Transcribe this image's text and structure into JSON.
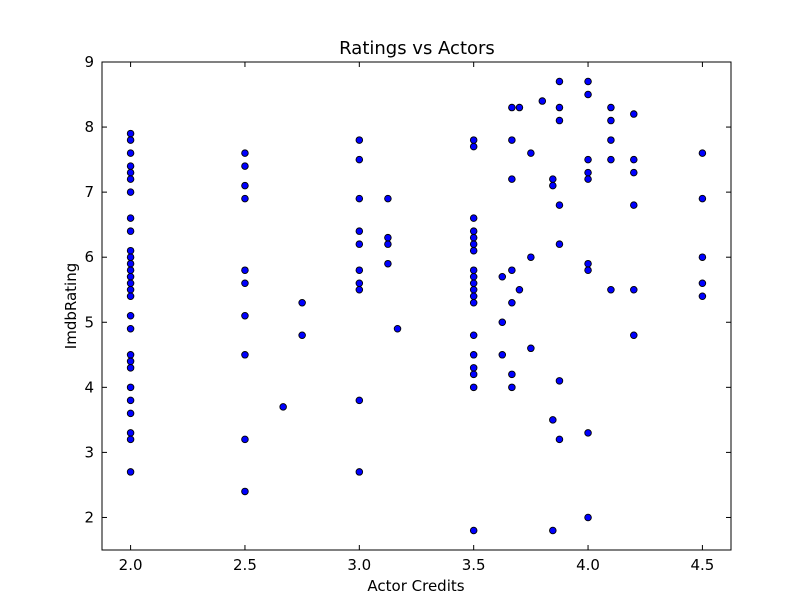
{
  "chart_data": {
    "type": "scatter",
    "title": "Ratings vs Actors",
    "xlabel": "Actor Credits",
    "ylabel": "ImdbRating",
    "xlim": [
      1.875,
      4.625
    ],
    "ylim": [
      1.5,
      9.0
    ],
    "xticks": [
      "2.0",
      "2.5",
      "3.0",
      "3.5",
      "4.0",
      "4.5"
    ],
    "yticks": [
      "2",
      "3",
      "4",
      "5",
      "6",
      "7",
      "8",
      "9"
    ],
    "grid": false,
    "marker_color": "#0000ff",
    "marker_edge_color": "#000000",
    "points": [
      [
        2.0,
        7.9
      ],
      [
        2.0,
        7.8
      ],
      [
        2.0,
        7.6
      ],
      [
        2.0,
        7.4
      ],
      [
        2.0,
        7.3
      ],
      [
        2.0,
        7.2
      ],
      [
        2.0,
        7.0
      ],
      [
        2.0,
        6.6
      ],
      [
        2.0,
        6.4
      ],
      [
        2.0,
        6.1
      ],
      [
        2.0,
        6.0
      ],
      [
        2.0,
        5.9
      ],
      [
        2.0,
        5.8
      ],
      [
        2.0,
        5.7
      ],
      [
        2.0,
        5.6
      ],
      [
        2.0,
        5.5
      ],
      [
        2.0,
        5.4
      ],
      [
        2.0,
        5.1
      ],
      [
        2.0,
        4.9
      ],
      [
        2.0,
        4.5
      ],
      [
        2.0,
        4.4
      ],
      [
        2.0,
        4.3
      ],
      [
        2.0,
        4.0
      ],
      [
        2.0,
        3.8
      ],
      [
        2.0,
        3.6
      ],
      [
        2.0,
        3.3
      ],
      [
        2.0,
        3.2
      ],
      [
        2.0,
        2.7
      ],
      [
        2.5,
        7.6
      ],
      [
        2.5,
        7.4
      ],
      [
        2.5,
        7.1
      ],
      [
        2.5,
        6.9
      ],
      [
        2.5,
        5.8
      ],
      [
        2.5,
        5.6
      ],
      [
        2.5,
        5.1
      ],
      [
        2.5,
        4.5
      ],
      [
        2.5,
        3.2
      ],
      [
        2.5,
        2.4
      ],
      [
        2.667,
        3.7
      ],
      [
        2.75,
        5.3
      ],
      [
        2.75,
        4.8
      ],
      [
        3.0,
        7.8
      ],
      [
        3.0,
        7.5
      ],
      [
        3.0,
        6.9
      ],
      [
        3.0,
        6.4
      ],
      [
        3.0,
        6.2
      ],
      [
        3.0,
        5.8
      ],
      [
        3.0,
        5.6
      ],
      [
        3.0,
        5.5
      ],
      [
        3.0,
        3.8
      ],
      [
        3.0,
        2.7
      ],
      [
        3.125,
        6.9
      ],
      [
        3.125,
        6.3
      ],
      [
        3.125,
        6.2
      ],
      [
        3.125,
        5.9
      ],
      [
        3.167,
        4.9
      ],
      [
        3.5,
        7.8
      ],
      [
        3.5,
        7.7
      ],
      [
        3.5,
        6.6
      ],
      [
        3.5,
        6.4
      ],
      [
        3.5,
        6.3
      ],
      [
        3.5,
        6.2
      ],
      [
        3.5,
        6.1
      ],
      [
        3.5,
        5.8
      ],
      [
        3.5,
        5.7
      ],
      [
        3.5,
        5.6
      ],
      [
        3.5,
        5.5
      ],
      [
        3.5,
        5.4
      ],
      [
        3.5,
        5.3
      ],
      [
        3.5,
        4.8
      ],
      [
        3.5,
        4.5
      ],
      [
        3.5,
        4.3
      ],
      [
        3.5,
        4.2
      ],
      [
        3.5,
        4.0
      ],
      [
        3.5,
        1.8
      ],
      [
        3.625,
        5.7
      ],
      [
        3.625,
        5.0
      ],
      [
        3.625,
        4.5
      ],
      [
        3.667,
        8.3
      ],
      [
        3.667,
        7.8
      ],
      [
        3.667,
        7.2
      ],
      [
        3.667,
        5.8
      ],
      [
        3.667,
        5.3
      ],
      [
        3.667,
        4.2
      ],
      [
        3.667,
        4.0
      ],
      [
        3.7,
        8.3
      ],
      [
        3.7,
        5.5
      ],
      [
        3.75,
        7.6
      ],
      [
        3.75,
        6.0
      ],
      [
        3.75,
        4.6
      ],
      [
        3.8,
        8.4
      ],
      [
        3.846,
        7.2
      ],
      [
        3.846,
        7.1
      ],
      [
        3.846,
        3.5
      ],
      [
        3.846,
        1.8
      ],
      [
        3.875,
        8.7
      ],
      [
        3.875,
        8.3
      ],
      [
        3.875,
        8.1
      ],
      [
        3.875,
        6.8
      ],
      [
        3.875,
        6.2
      ],
      [
        3.875,
        4.1
      ],
      [
        3.875,
        3.2
      ],
      [
        4.0,
        8.7
      ],
      [
        4.0,
        8.5
      ],
      [
        4.0,
        7.5
      ],
      [
        4.0,
        7.3
      ],
      [
        4.0,
        7.2
      ],
      [
        4.0,
        5.9
      ],
      [
        4.0,
        5.8
      ],
      [
        4.0,
        3.3
      ],
      [
        4.0,
        2.0
      ],
      [
        4.1,
        8.3
      ],
      [
        4.1,
        8.1
      ],
      [
        4.1,
        7.8
      ],
      [
        4.1,
        7.5
      ],
      [
        4.1,
        5.5
      ],
      [
        4.2,
        8.2
      ],
      [
        4.2,
        7.5
      ],
      [
        4.2,
        7.3
      ],
      [
        4.2,
        6.8
      ],
      [
        4.2,
        5.5
      ],
      [
        4.2,
        4.8
      ],
      [
        4.5,
        7.6
      ],
      [
        4.5,
        6.9
      ],
      [
        4.5,
        6.0
      ],
      [
        4.5,
        5.6
      ],
      [
        4.5,
        5.4
      ]
    ]
  }
}
